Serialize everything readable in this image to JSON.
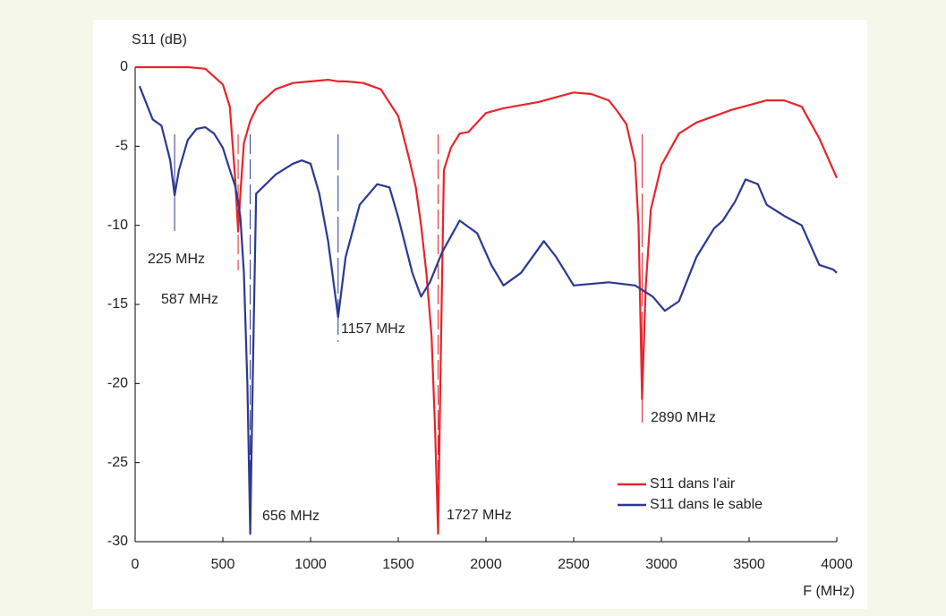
{
  "chart_data": {
    "type": "line",
    "y_label": "S11 (dB)",
    "x_label": "F (MHz)",
    "xlim": [
      0,
      4000
    ],
    "ylim": [
      -30,
      0
    ],
    "xticks": [
      0,
      500,
      1000,
      1500,
      2000,
      2500,
      3000,
      3500,
      4000
    ],
    "yticks": [
      -30,
      -25,
      -20,
      -15,
      -10,
      -5,
      0
    ],
    "legend": "lower right",
    "series": [
      {
        "name": "S11 dans l'air",
        "color": "#e8242b",
        "x": [
          0,
          100,
          200,
          300,
          400,
          450,
          500,
          540,
          570,
          587,
          600,
          620,
          656,
          700,
          800,
          900,
          1000,
          1100,
          1157,
          1200,
          1300,
          1400,
          1500,
          1560,
          1600,
          1630,
          1660,
          1690,
          1710,
          1727,
          1740,
          1760,
          1800,
          1850,
          1900,
          2000,
          2100,
          2200,
          2300,
          2400,
          2500,
          2600,
          2700,
          2750,
          2800,
          2850,
          2870,
          2890,
          2910,
          2940,
          3000,
          3100,
          3200,
          3300,
          3400,
          3500,
          3600,
          3700,
          3800,
          3900,
          4000
        ],
        "values": [
          0,
          0,
          0,
          0,
          -0.1,
          -0.6,
          -1.1,
          -2.5,
          -7,
          -10.4,
          -8,
          -4.8,
          -3.4,
          -2.4,
          -1.4,
          -1,
          -0.9,
          -0.8,
          -0.9,
          -0.9,
          -1,
          -1.4,
          -3.1,
          -5.7,
          -7.6,
          -10,
          -13,
          -17,
          -23,
          -29.5,
          -20,
          -6.5,
          -5.1,
          -4.2,
          -4.1,
          -2.9,
          -2.6,
          -2.4,
          -2.2,
          -1.9,
          -1.6,
          -1.7,
          -2.1,
          -2.8,
          -3.6,
          -6,
          -10,
          -21,
          -14,
          -9,
          -6.2,
          -4.2,
          -3.5,
          -3.1,
          -2.7,
          -2.4,
          -2.1,
          -2.1,
          -2.5,
          -4.5,
          -7
        ]
      },
      {
        "name": "S11 dans le sable",
        "color": "#2b3990",
        "x": [
          25,
          100,
          150,
          200,
          225,
          250,
          300,
          350,
          400,
          450,
          500,
          540,
          570,
          587,
          600,
          620,
          640,
          656,
          670,
          690,
          800,
          900,
          950,
          1000,
          1050,
          1100,
          1157,
          1200,
          1280,
          1380,
          1450,
          1500,
          1580,
          1630,
          1680,
          1750,
          1850,
          1950,
          2030,
          2100,
          2200,
          2330,
          2400,
          2500,
          2700,
          2850,
          2950,
          3020,
          3100,
          3200,
          3300,
          3350,
          3420,
          3480,
          3550,
          3600,
          3700,
          3800,
          3900,
          3980,
          4000
        ],
        "values": [
          -1.2,
          -3.3,
          -3.7,
          -5.9,
          -8.1,
          -6.5,
          -4.6,
          -3.9,
          -3.8,
          -4.2,
          -5.1,
          -6.5,
          -7.5,
          -8.5,
          -9.5,
          -13,
          -20,
          -29.5,
          -20,
          -8,
          -6.8,
          -6.1,
          -5.9,
          -6.1,
          -8,
          -11,
          -15.8,
          -12,
          -8.7,
          -7.4,
          -7.6,
          -9.5,
          -13,
          -14.5,
          -13.6,
          -11.7,
          -9.7,
          -10.5,
          -12.5,
          -13.8,
          -13,
          -11,
          -12,
          -13.8,
          -13.6,
          -13.8,
          -14.5,
          -15.4,
          -14.8,
          -12,
          -10.2,
          -9.7,
          -8.5,
          -7.1,
          -7.4,
          -8.7,
          -9.4,
          -10,
          -12.5,
          -12.8,
          -13
        ]
      }
    ],
    "annotations": [
      {
        "label": "225 MHz",
        "x": 225,
        "color": "#2b3990"
      },
      {
        "label": "587 MHz",
        "x": 587,
        "color": "#e8242b"
      },
      {
        "label": "656 MHz",
        "x": 656,
        "color": "#2b3990"
      },
      {
        "label": "1157 MHz",
        "x": 1157,
        "color": "#2b3990"
      },
      {
        "label": "1727 MHz",
        "x": 1727,
        "color": "#e8242b"
      },
      {
        "label": "2890 MHz",
        "x": 2890,
        "color": "#e8242b"
      }
    ]
  }
}
